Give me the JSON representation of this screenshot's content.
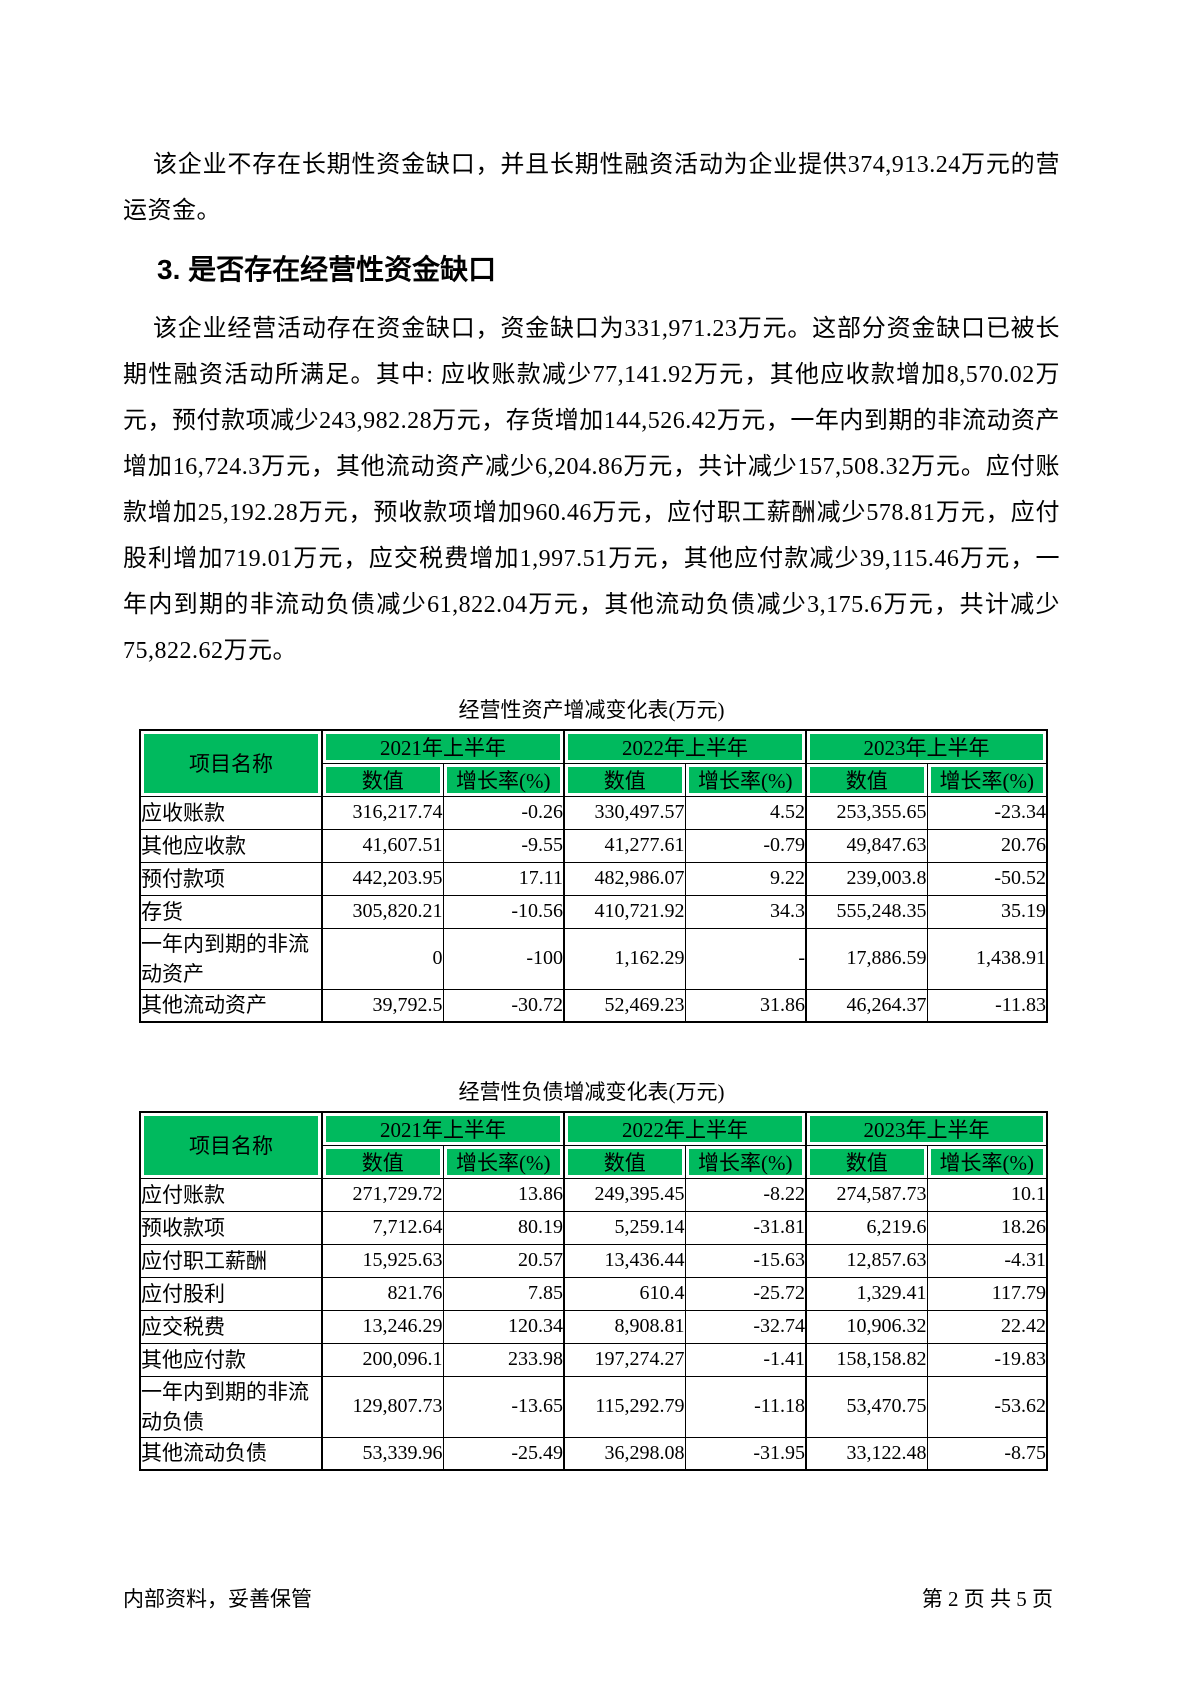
{
  "document": {
    "paragraph_1": "该企业不存在长期性资金缺口，并且长期性融资活动为企业提供374,913.24万元的营运资金。",
    "section_heading": "3. 是否存在经营性资金缺口",
    "paragraph_2": "该企业经营活动存在资金缺口，资金缺口为331,971.23万元。这部分资金缺口已被长期性融资活动所满足。其中: 应收账款减少77,141.92万元，其他应收款增加8,570.02万元，预付款项减少243,982.28万元，存货增加144,526.42万元，一年内到期的非流动资产增加16,724.3万元，其他流动资产减少6,204.86万元，共计减少157,508.32万元。应付账款增加25,192.28万元，预收款项增加960.46万元，应付职工薪酬减少578.81万元，应付股利增加719.01万元，应交税费增加1,997.51万元，其他应付款减少39,115.46万元，一年内到期的非流动负债减少61,822.04万元，其他流动负债减少3,175.6万元，共计减少75,822.62万元。"
  },
  "colors": {
    "table_header_green": "#00BA5E"
  },
  "asset_table": {
    "title": "经营性资产增减变化表(万元)",
    "corner_header": "项目名称",
    "year_headers": [
      "2021年上半年",
      "2022年上半年",
      "2023年上半年"
    ],
    "sub_headers": [
      "数值",
      "增长率(%)"
    ],
    "rows": [
      {
        "name": "应收账款",
        "values": [
          "316,217.74",
          "-0.26",
          "330,497.57",
          "4.52",
          "253,355.65",
          "-23.34"
        ]
      },
      {
        "name": "其他应收款",
        "values": [
          "41,607.51",
          "-9.55",
          "41,277.61",
          "-0.79",
          "49,847.63",
          "20.76"
        ]
      },
      {
        "name": "预付款项",
        "values": [
          "442,203.95",
          "17.11",
          "482,986.07",
          "9.22",
          "239,003.8",
          "-50.52"
        ]
      },
      {
        "name": "存货",
        "values": [
          "305,820.21",
          "-10.56",
          "410,721.92",
          "34.3",
          "555,248.35",
          "35.19"
        ]
      },
      {
        "name": "一年内到期的非流动资产",
        "values": [
          "0",
          "-100",
          "1,162.29",
          "-",
          "17,886.59",
          "1,438.91"
        ]
      },
      {
        "name": "其他流动资产",
        "values": [
          "39,792.5",
          "-30.72",
          "52,469.23",
          "31.86",
          "46,264.37",
          "-11.83"
        ]
      }
    ]
  },
  "liability_table": {
    "title": "经营性负债增减变化表(万元)",
    "corner_header": "项目名称",
    "year_headers": [
      "2021年上半年",
      "2022年上半年",
      "2023年上半年"
    ],
    "sub_headers": [
      "数值",
      "增长率(%)"
    ],
    "rows": [
      {
        "name": "应付账款",
        "values": [
          "271,729.72",
          "13.86",
          "249,395.45",
          "-8.22",
          "274,587.73",
          "10.1"
        ]
      },
      {
        "name": "预收款项",
        "values": [
          "7,712.64",
          "80.19",
          "5,259.14",
          "-31.81",
          "6,219.6",
          "18.26"
        ]
      },
      {
        "name": "应付职工薪酬",
        "values": [
          "15,925.63",
          "20.57",
          "13,436.44",
          "-15.63",
          "12,857.63",
          "-4.31"
        ]
      },
      {
        "name": "应付股利",
        "values": [
          "821.76",
          "7.85",
          "610.4",
          "-25.72",
          "1,329.41",
          "117.79"
        ]
      },
      {
        "name": "应交税费",
        "values": [
          "13,246.29",
          "120.34",
          "8,908.81",
          "-32.74",
          "10,906.32",
          "22.42"
        ]
      },
      {
        "name": "其他应付款",
        "values": [
          "200,096.1",
          "233.98",
          "197,274.27",
          "-1.41",
          "158,158.82",
          "-19.83"
        ]
      },
      {
        "name": "一年内到期的非流动负债",
        "values": [
          "129,807.73",
          "-13.65",
          "115,292.79",
          "-11.18",
          "53,470.75",
          "-53.62"
        ]
      },
      {
        "name": "其他流动负债",
        "values": [
          "53,339.96",
          "-25.49",
          "36,298.08",
          "-31.95",
          "33,122.48",
          "-8.75"
        ]
      }
    ]
  },
  "footer": {
    "left_note": "内部资料，妥善保管",
    "page_indicator": "第 2 页  共 5 页"
  }
}
